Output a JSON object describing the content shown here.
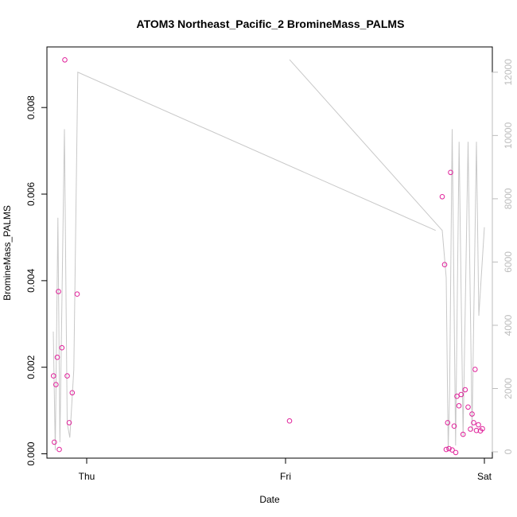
{
  "chart_data": {
    "type": "scatter",
    "title": "ATOM3 Northeast_Pacific_2 BromineMass_PALMS",
    "xlabel": "Date",
    "ylabel": "BromineMass_PALMS",
    "x_ticks": [
      {
        "label": "Thu",
        "value": 0
      },
      {
        "label": "Fri",
        "value": 1
      },
      {
        "label": "Sat",
        "value": 2
      }
    ],
    "xlim": [
      -0.2,
      2.04
    ],
    "ylim": [
      -0.0001,
      0.0094
    ],
    "y_ticks": [
      {
        "label": "0.000",
        "value": 0
      },
      {
        "label": "0.002",
        "value": 0.002
      },
      {
        "label": "0.004",
        "value": 0.004
      },
      {
        "label": "0.006",
        "value": 0.006
      },
      {
        "label": "0.008",
        "value": 0.008
      }
    ],
    "y2lim": [
      -200,
      12800
    ],
    "y2_ticks": [
      {
        "label": "0",
        "value": 0
      },
      {
        "label": "2000",
        "value": 2000
      },
      {
        "label": "4000",
        "value": 4000
      },
      {
        "label": "6000",
        "value": 6000
      },
      {
        "label": "8000",
        "value": 8000
      },
      {
        "label": "10000",
        "value": 10000
      },
      {
        "label": "12000",
        "value": 12000
      }
    ],
    "colors": {
      "points": "#e0219a",
      "line": "#c8c8c8",
      "axis": "#000000",
      "right_axis": "#bdbdbd"
    },
    "series": [
      {
        "kind": "points",
        "points": [
          [
            -0.167,
            0.0018
          ],
          [
            -0.163,
            0.00027
          ],
          [
            -0.155,
            0.0016
          ],
          [
            -0.148,
            0.00223
          ],
          [
            -0.142,
            0.00375
          ],
          [
            -0.138,
            0.0001
          ],
          [
            -0.125,
            0.00245
          ],
          [
            -0.11,
            0.0091
          ],
          [
            -0.098,
            0.0018
          ],
          [
            -0.088,
            0.00072
          ],
          [
            -0.073,
            0.00141
          ],
          [
            -0.048,
            0.00369
          ],
          [
            1.02,
            0.00076
          ],
          [
            1.788,
            0.00594
          ],
          [
            1.8,
            0.00437
          ],
          [
            1.808,
            0.0001
          ],
          [
            1.815,
            0.00072
          ],
          [
            1.822,
            0.00012
          ],
          [
            1.83,
            0.0065
          ],
          [
            1.838,
            9e-05
          ],
          [
            1.848,
            0.00064
          ],
          [
            1.856,
            3e-05
          ],
          [
            1.862,
            0.00133
          ],
          [
            1.872,
            0.00111
          ],
          [
            1.883,
            0.00137
          ],
          [
            1.893,
            0.00045
          ],
          [
            1.903,
            0.00148
          ],
          [
            1.918,
            0.00108
          ],
          [
            1.93,
            0.00057
          ],
          [
            1.938,
            0.00092
          ],
          [
            1.946,
            0.00072
          ],
          [
            1.953,
            0.00195
          ],
          [
            1.96,
            0.00054
          ],
          [
            1.97,
            0.00067
          ],
          [
            1.98,
            0.00053
          ],
          [
            1.99,
            0.00058
          ]
        ]
      },
      {
        "kind": "line",
        "axis": "right",
        "segments": [
          [
            [
              -0.168,
              3800
            ],
            [
              -0.158,
              50
            ],
            [
              -0.145,
              7400
            ],
            [
              -0.135,
              300
            ],
            [
              -0.112,
              10200
            ],
            [
              -0.098,
              900
            ],
            [
              -0.085,
              450
            ],
            [
              -0.065,
              2600
            ],
            [
              -0.045,
              12000
            ],
            [
              1.755,
              7000
            ]
          ],
          [
            [
              1.02,
              12400
            ],
            [
              1.788,
              7000
            ],
            [
              1.808,
              5500
            ],
            [
              1.818,
              50
            ],
            [
              1.825,
              1800
            ],
            [
              1.838,
              10200
            ],
            [
              1.855,
              200
            ],
            [
              1.873,
              9800
            ],
            [
              1.893,
              500
            ],
            [
              1.918,
              9800
            ],
            [
              1.938,
              700
            ],
            [
              1.96,
              9800
            ],
            [
              1.972,
              4300
            ],
            [
              2.0,
              7100
            ]
          ]
        ]
      }
    ]
  }
}
